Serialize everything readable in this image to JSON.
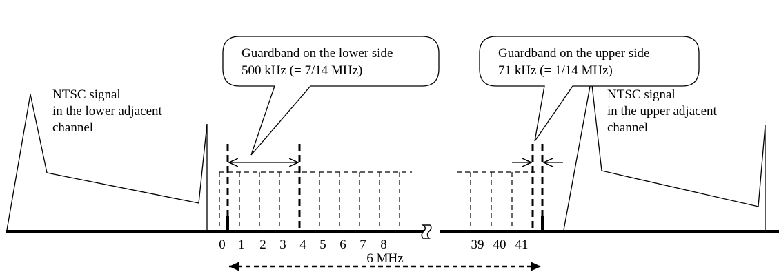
{
  "callouts": {
    "lower": {
      "line1": "Guardband on the lower side",
      "line2": "500 kHz (= 7/14 MHz)"
    },
    "upper": {
      "line1": "Guardband on the upper side",
      "line2": "71 kHz (= 1/14 MHz)"
    }
  },
  "ntsc": {
    "lower": {
      "line1": "NTSC signal",
      "line2": "in the lower adjacent",
      "line3": "channel"
    },
    "upper": {
      "line1": "NTSC signal",
      "line2": "in the upper adjacent",
      "line3": "channel"
    }
  },
  "subcarrier_labels": {
    "left": [
      "0",
      "1",
      "2",
      "3",
      "4",
      "5",
      "6",
      "7",
      "8"
    ],
    "right": [
      "39",
      "40",
      "41"
    ]
  },
  "channel_width": "6 MHz",
  "colors": {
    "ink": "#000000",
    "background": "#ffffff"
  }
}
